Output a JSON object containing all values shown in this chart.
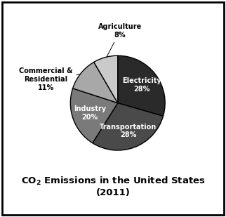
{
  "slices": [
    {
      "label": "Electricity\n28%",
      "value": 28,
      "color": "#2a2a2a",
      "text_color": "white",
      "inside": true
    },
    {
      "label": "Transportation\n28%",
      "value": 28,
      "color": "#4a4a4a",
      "text_color": "white",
      "inside": true
    },
    {
      "label": "Industry\n20%",
      "value": 20,
      "color": "#7a7a7a",
      "text_color": "white",
      "inside": true
    },
    {
      "label": "Commercial &\nResidential\n11%",
      "value": 11,
      "color": "#a8a8a8",
      "text_color": "black",
      "inside": false
    },
    {
      "label": "Agriculture\n8%",
      "value": 8,
      "color": "#cacaca",
      "text_color": "black",
      "inside": false
    }
  ],
  "startangle": 90,
  "counterclock": false,
  "figsize": [
    3.22,
    3.09
  ],
  "dpi": 100,
  "label_fontsize": 7.0,
  "title_fontsize": 9.5,
  "edge_color": "black",
  "edge_lw": 1.0
}
